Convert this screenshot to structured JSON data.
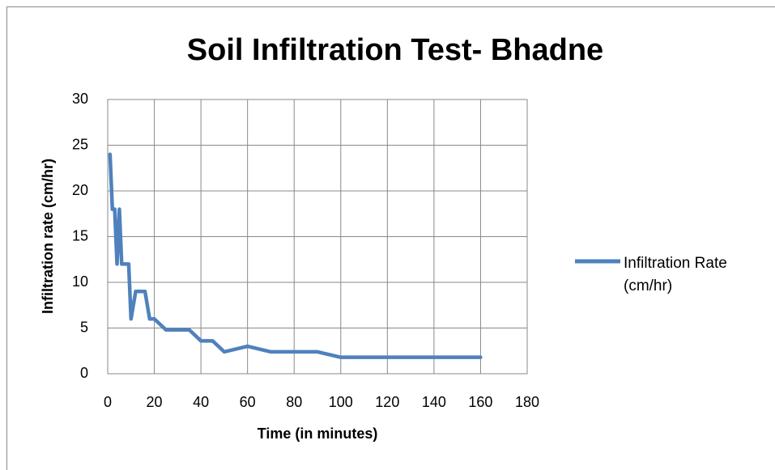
{
  "chart_data": {
    "type": "line",
    "title": "Soil Infiltration Test- Bhadne",
    "x_label": "Time (in minutes)",
    "y_label": "Infiltration rate (cm/hr)",
    "x": [
      1,
      2,
      3,
      4,
      5,
      6,
      7,
      9,
      10,
      12,
      14,
      16,
      18,
      20,
      25,
      30,
      35,
      40,
      45,
      50,
      60,
      70,
      80,
      90,
      100,
      110,
      120,
      130,
      140,
      150,
      160
    ],
    "series": [
      {
        "name": "Infiltration Rate (cm/hr)",
        "color": "#4f81bd",
        "values": [
          24,
          18,
          18,
          12,
          18,
          12,
          12,
          12,
          6,
          9,
          9,
          9,
          6,
          6,
          4.8,
          4.8,
          4.8,
          3.6,
          3.6,
          2.4,
          3,
          2.4,
          2.4,
          2.4,
          1.8,
          1.8,
          1.8,
          1.8,
          1.8,
          1.8,
          1.8
        ]
      }
    ],
    "xlim": [
      0,
      180
    ],
    "xticks": [
      0,
      20,
      40,
      60,
      80,
      100,
      120,
      140,
      160,
      180
    ],
    "ylim": [
      0,
      30
    ],
    "yticks": [
      0,
      5,
      10,
      15,
      20,
      25,
      30
    ],
    "grid": true,
    "legend": "right"
  }
}
